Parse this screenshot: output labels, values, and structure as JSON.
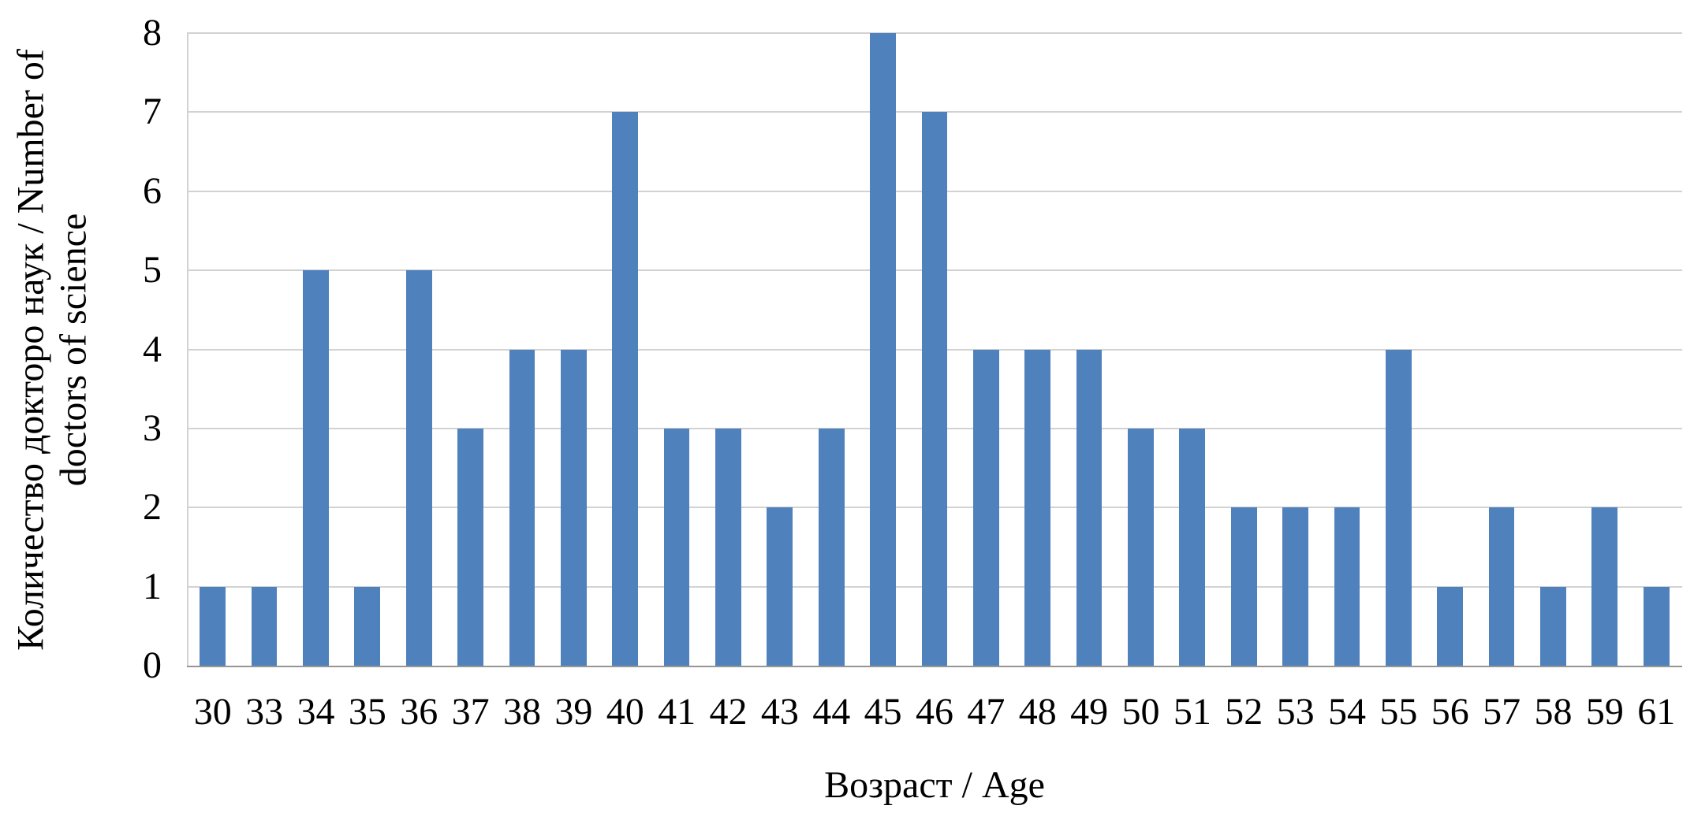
{
  "chart_data": {
    "type": "bar",
    "title": "",
    "categories": [
      "30",
      "33",
      "34",
      "35",
      "36",
      "37",
      "38",
      "39",
      "40",
      "41",
      "42",
      "43",
      "44",
      "45",
      "46",
      "47",
      "48",
      "49",
      "50",
      "51",
      "52",
      "53",
      "54",
      "55",
      "56",
      "57",
      "58",
      "59",
      "61"
    ],
    "values": [
      1,
      1,
      5,
      1,
      5,
      3,
      4,
      4,
      7,
      3,
      3,
      2,
      3,
      8,
      7,
      4,
      4,
      4,
      3,
      3,
      2,
      2,
      2,
      4,
      1,
      2,
      1,
      2,
      1
    ],
    "xlabel": "Возраст / Age",
    "ylabel": "Количество докторо наук / Number of doctors of science",
    "ylim": [
      0,
      8
    ],
    "y_ticks": [
      0,
      1,
      2,
      3,
      4,
      5,
      6,
      7,
      8
    ],
    "grid": true,
    "legend": "none",
    "bar_color": "#4F81BD",
    "gridline_color": "#D2D2D2",
    "axis_line_color": "#959595",
    "text_color": "#000000",
    "background_color": "#FFFFFF"
  }
}
